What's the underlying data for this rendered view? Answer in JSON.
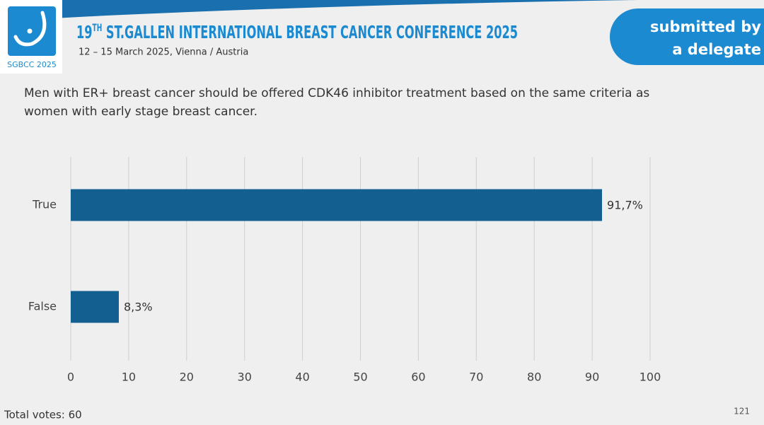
{
  "header": {
    "logo_text": "SGBCC 2025",
    "title_number": "19",
    "title_suffix": "TH",
    "title_rest": " ST.GALLEN INTERNATIONAL BREAST CANCER CONFERENCE 2025",
    "subtitle": "12 – 15 March 2025, Vienna / Austria",
    "badge_lines": [
      "submitted by",
      "a delegate"
    ]
  },
  "chart_data": {
    "type": "hbar",
    "title": "Men with ER+ breast cancer should be offered CDK46 inhibitor treatment based on the same criteria as women with early stage breast cancer.",
    "categories": [
      "True",
      "False"
    ],
    "values": [
      91.7,
      8.3
    ],
    "value_labels": [
      "91,7%",
      "8,3%"
    ],
    "color": "#135f90",
    "xlim": [
      0,
      100
    ],
    "xticks": [
      0,
      10,
      20,
      30,
      40,
      50,
      60,
      70,
      80,
      90,
      100
    ],
    "grid": true
  },
  "footer": {
    "votes": "Total votes: 60",
    "page_number": "121"
  }
}
